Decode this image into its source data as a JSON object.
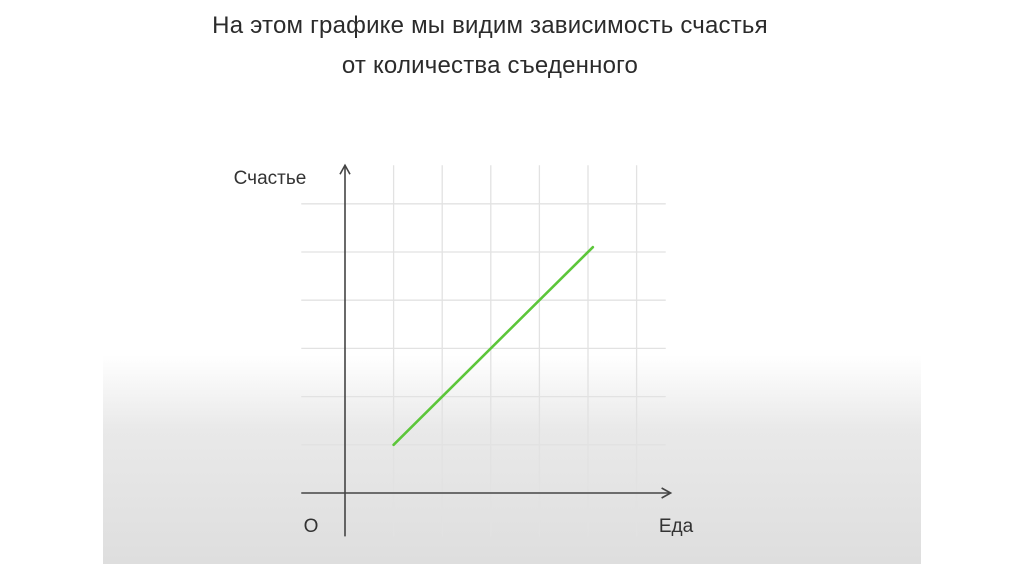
{
  "title_lines": [
    "На этом графике мы видим зависимость счастья",
    "от количества съеденного"
  ],
  "chart_data": {
    "type": "line",
    "title": "На этом графике мы видим зависимость счастья от количества съеденного",
    "xlabel": "Еда",
    "ylabel": "Счастье",
    "origin_label": "O",
    "xlim": [
      -0.9,
      6.7
    ],
    "ylim": [
      -0.9,
      6.8
    ],
    "grid": true,
    "series": [
      {
        "x": [
          1,
          5.1
        ],
        "y": [
          1,
          5.1
        ],
        "color": "#5cc63a"
      }
    ],
    "colors": {
      "grid": "#e2e2e2",
      "axis": "#444444",
      "text": "#333333"
    }
  }
}
